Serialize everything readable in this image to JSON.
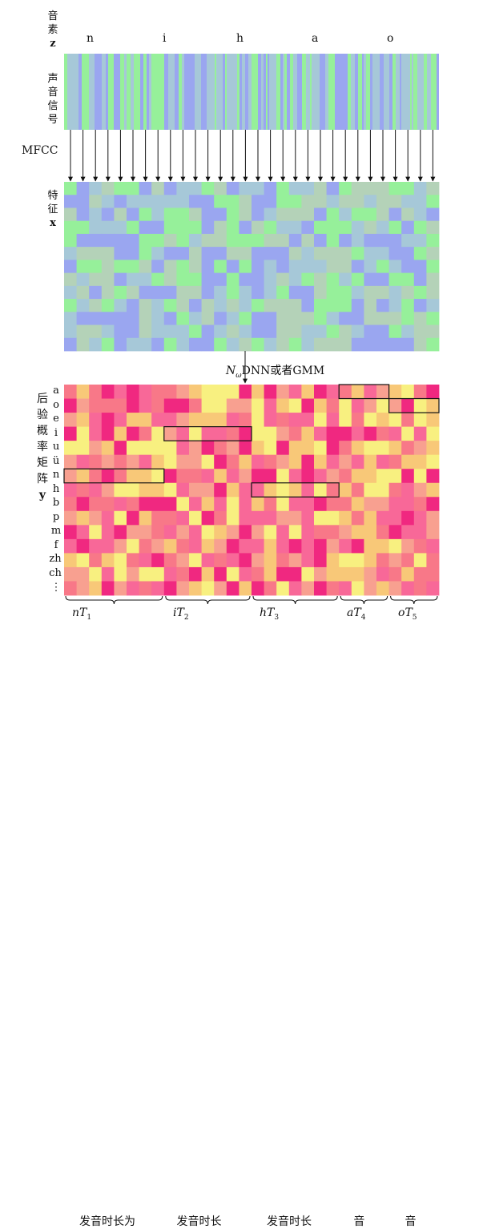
{
  "labels": {
    "phoneme_label": [
      "音",
      "素"
    ],
    "phoneme_symbol": "z",
    "signal_label": [
      "声",
      "音",
      "信",
      "号"
    ],
    "mfcc": "MFCC",
    "feature_label": [
      "特",
      "征"
    ],
    "feature_symbol": "x",
    "model_symbol": "N",
    "model_subscript": "ω",
    "model_text": "DNN或者GMM",
    "posterior_label": [
      "后",
      "验",
      "概",
      "率",
      "矩",
      "阵"
    ],
    "posterior_symbol": "y"
  },
  "phonemes": [
    "n",
    "i",
    "h",
    "a",
    "o"
  ],
  "rows": [
    "a",
    "o",
    "e",
    "i",
    "u",
    "ü",
    "n",
    "h",
    "b",
    "p",
    "m",
    "f",
    "zh",
    "ch",
    "⋮"
  ],
  "durations": [
    {
      "prefix": "n",
      "text": "发音时长为",
      "T": "T",
      "sub": "1"
    },
    {
      "prefix": "i",
      "text": "发音时长",
      "T": "T",
      "sub": "2"
    },
    {
      "prefix": "h",
      "text": "发音时长",
      "T": "T",
      "sub": "3"
    },
    {
      "prefix": "a",
      "text": "音",
      "T": "T",
      "sub": "4"
    },
    {
      "prefix": "o",
      "text": "音",
      "T": "T",
      "sub": "5"
    }
  ],
  "colors": {
    "signal": [
      "#96f09a",
      "#9aa6f0",
      "#a6c8d8"
    ],
    "feature": [
      "#96f09a",
      "#9aa6f0",
      "#a6c8d8",
      "#b4d2b8"
    ],
    "posterior": [
      "#f8f080",
      "#f8c878",
      "#f8a090",
      "#f86898",
      "#f02880",
      "#f87888"
    ],
    "box": "#111111"
  }
}
